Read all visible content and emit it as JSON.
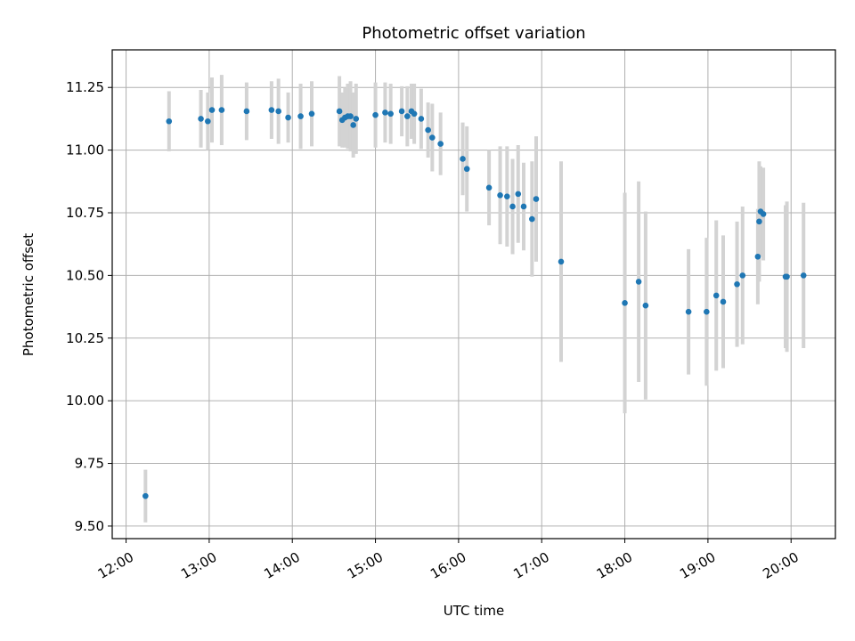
{
  "chart_data": {
    "type": "scatter",
    "title": "Photometric offset variation",
    "xlabel": "UTC time",
    "ylabel": "Photometric offset",
    "x_unit": "time of day (HH:MM UTC)",
    "xlim": [
      "11:50",
      "20:32"
    ],
    "ylim": [
      9.45,
      11.4
    ],
    "x_ticks": [
      "12:00",
      "13:00",
      "14:00",
      "15:00",
      "16:00",
      "17:00",
      "18:00",
      "19:00",
      "20:00"
    ],
    "y_ticks": [
      "9.50",
      "9.75",
      "10.00",
      "10.25",
      "10.50",
      "10.75",
      "11.00",
      "11.25"
    ],
    "y_tick_values": [
      9.5,
      9.75,
      10.0,
      10.25,
      10.5,
      10.75,
      11.0,
      11.25
    ],
    "grid": true,
    "colors": {
      "point": "#1f77b4",
      "error_bar": "#d3d3d3",
      "grid": "#b0b0b0"
    },
    "series": [
      {
        "x": [
          "12:14",
          "12:31",
          "12:54",
          "12:59",
          "13:02",
          "13:09",
          "13:27",
          "13:45",
          "13:50",
          "13:57",
          "14:06",
          "14:14",
          "14:34",
          "14:36",
          "14:38",
          "14:40",
          "14:42",
          "14:44",
          "14:46",
          "15:00",
          "15:07",
          "15:11",
          "15:19",
          "15:23",
          "15:26",
          "15:28",
          "15:33",
          "15:38",
          "15:41",
          "15:47",
          "16:03",
          "16:06",
          "16:22",
          "16:30",
          "16:35",
          "16:39",
          "16:43",
          "16:47",
          "16:53",
          "16:56",
          "17:14",
          "18:00",
          "18:10",
          "18:15",
          "18:46",
          "18:59",
          "19:06",
          "19:11",
          "19:21",
          "19:25",
          "19:36",
          "19:37",
          "19:38",
          "19:40",
          "19:56",
          "19:57",
          "20:09"
        ],
        "y": [
          9.62,
          11.115,
          11.125,
          11.115,
          11.16,
          11.16,
          11.155,
          11.16,
          11.155,
          11.13,
          11.135,
          11.145,
          11.155,
          11.12,
          11.13,
          11.135,
          11.135,
          11.1,
          11.125,
          11.14,
          11.15,
          11.145,
          11.155,
          11.135,
          11.155,
          11.145,
          11.125,
          11.08,
          11.05,
          11.025,
          10.965,
          10.925,
          10.85,
          10.82,
          10.815,
          10.775,
          10.825,
          10.775,
          10.725,
          10.805,
          10.555,
          10.39,
          10.475,
          10.38,
          10.355,
          10.355,
          10.42,
          10.395,
          10.465,
          10.5,
          10.575,
          10.715,
          10.755,
          10.745,
          10.495,
          10.495,
          10.5
        ],
        "yerr": [
          0.105,
          0.12,
          0.115,
          0.115,
          0.13,
          0.14,
          0.115,
          0.115,
          0.13,
          0.1,
          0.13,
          0.13,
          0.14,
          0.11,
          0.12,
          0.13,
          0.14,
          0.13,
          0.14,
          0.13,
          0.12,
          0.12,
          0.1,
          0.12,
          0.11,
          0.12,
          0.12,
          0.11,
          0.135,
          0.125,
          0.145,
          0.17,
          0.15,
          0.195,
          0.2,
          0.19,
          0.195,
          0.175,
          0.23,
          0.25,
          0.4,
          0.44,
          0.4,
          0.375,
          0.25,
          0.295,
          0.3,
          0.265,
          0.25,
          0.275,
          0.19,
          0.24,
          0.18,
          0.185,
          0.285,
          0.3,
          0.29
        ]
      }
    ]
  }
}
